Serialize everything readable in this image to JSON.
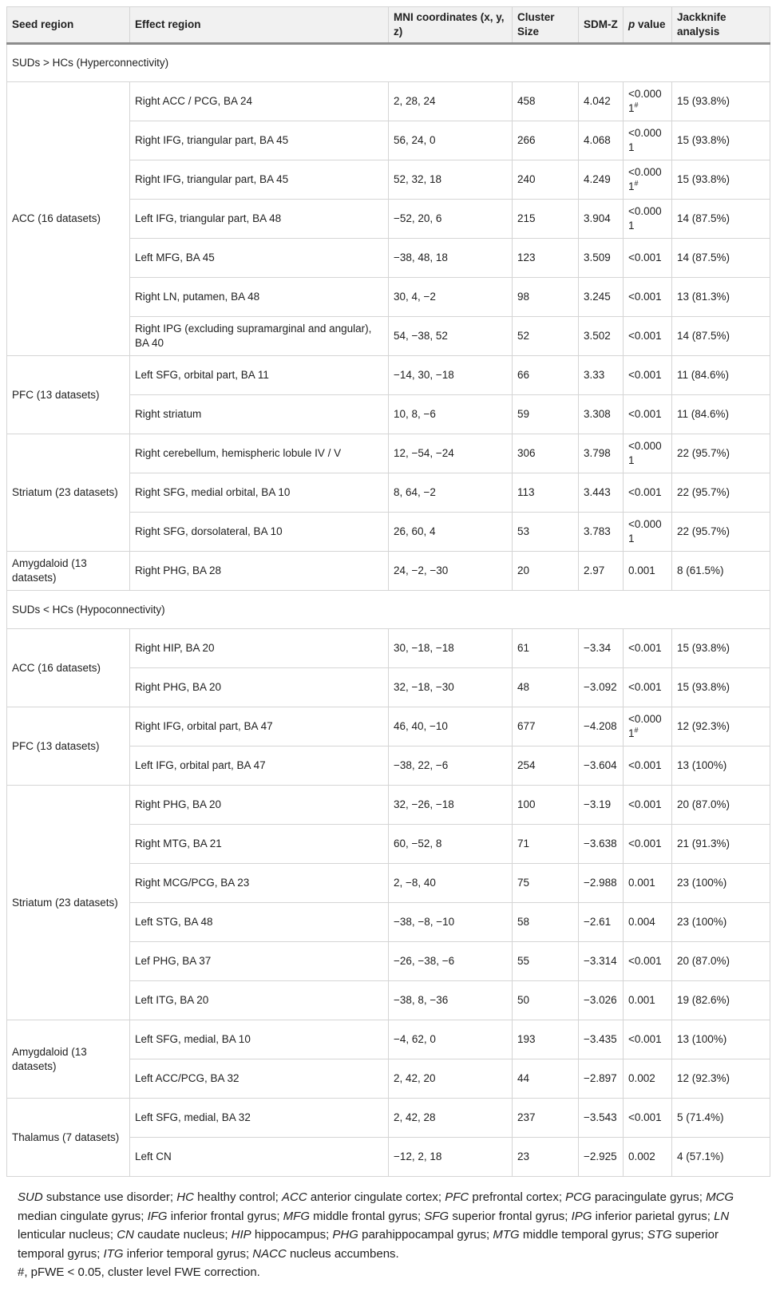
{
  "table": {
    "headers": [
      {
        "label": "Seed region"
      },
      {
        "label": "Effect region"
      },
      {
        "label": "MNI coordinates (x, y, z)"
      },
      {
        "label": "Cluster Size"
      },
      {
        "label": "SDM-Z"
      },
      {
        "label": "p value",
        "italic_first_word": true
      },
      {
        "label": "Jackknife analysis"
      }
    ],
    "sections": [
      {
        "title": "SUDs > HCs (Hyperconnectivity)",
        "groups": [
          {
            "seed": "ACC (16 datasets)",
            "rows": [
              {
                "effect": "Right ACC / PCG, BA 24",
                "mni": "2, 28, 24",
                "cluster": "458",
                "sdm_z": "4.042",
                "p": "<0.0001#",
                "jackknife": "15 (93.8%)"
              },
              {
                "effect": "Right IFG, triangular part, BA 45",
                "mni": "56, 24, 0",
                "cluster": "266",
                "sdm_z": "4.068",
                "p": "<0.0001",
                "jackknife": "15 (93.8%)"
              },
              {
                "effect": "Right IFG, triangular part, BA 45",
                "mni": "52, 32, 18",
                "cluster": "240",
                "sdm_z": "4.249",
                "p": "<0.0001#",
                "jackknife": "15 (93.8%)"
              },
              {
                "effect": "Left IFG, triangular part, BA 48",
                "mni": "−52, 20, 6",
                "cluster": "215",
                "sdm_z": "3.904",
                "p": "<0.0001",
                "jackknife": "14 (87.5%)"
              },
              {
                "effect": "Left MFG, BA 45",
                "mni": "−38, 48, 18",
                "cluster": "123",
                "sdm_z": "3.509",
                "p": "<0.001",
                "jackknife": "14 (87.5%)"
              },
              {
                "effect": "Right LN, putamen, BA 48",
                "mni": "30, 4, −2",
                "cluster": "98",
                "sdm_z": "3.245",
                "p": "<0.001",
                "jackknife": "13 (81.3%)"
              },
              {
                "effect": "Right IPG (excluding supramarginal and angular), BA 40",
                "mni": "54, −38, 52",
                "cluster": "52",
                "sdm_z": "3.502",
                "p": "<0.001",
                "jackknife": "14 (87.5%)"
              }
            ]
          },
          {
            "seed": "PFC (13 datasets)",
            "rows": [
              {
                "effect": "Left SFG, orbital part, BA 11",
                "mni": "−14, 30, −18",
                "cluster": "66",
                "sdm_z": "3.33",
                "p": "<0.001",
                "jackknife": "11 (84.6%)"
              },
              {
                "effect": "Right striatum",
                "mni": "10, 8, −6",
                "cluster": "59",
                "sdm_z": "3.308",
                "p": "<0.001",
                "jackknife": "11 (84.6%)"
              }
            ]
          },
          {
            "seed": "Striatum (23 datasets)",
            "rows": [
              {
                "effect": "Right cerebellum, hemispheric lobule IV / V",
                "mni": "12, −54, −24",
                "cluster": "306",
                "sdm_z": "3.798",
                "p": "<0.0001",
                "jackknife": "22 (95.7%)"
              },
              {
                "effect": "Right SFG, medial orbital, BA 10",
                "mni": "8, 64, −2",
                "cluster": "113",
                "sdm_z": "3.443",
                "p": "<0.001",
                "jackknife": "22 (95.7%)"
              },
              {
                "effect": "Right SFG, dorsolateral, BA 10",
                "mni": "26, 60, 4",
                "cluster": "53",
                "sdm_z": "3.783",
                "p": "<0.0001",
                "jackknife": "22 (95.7%)"
              }
            ]
          },
          {
            "seed": "Amygdaloid (13 datasets)",
            "rows": [
              {
                "effect": "Right PHG, BA 28",
                "mni": "24, −2, −30",
                "cluster": "20",
                "sdm_z": "2.97",
                "p": "0.001",
                "jackknife": "8 (61.5%)"
              }
            ]
          }
        ]
      },
      {
        "title": "SUDs < HCs (Hypoconnectivity)",
        "groups": [
          {
            "seed": "ACC (16 datasets)",
            "rows": [
              {
                "effect": "Right HIP, BA 20",
                "mni": "30, −18, −18",
                "cluster": "61",
                "sdm_z": "−3.34",
                "p": "<0.001",
                "jackknife": "15 (93.8%)"
              },
              {
                "effect": "Right PHG, BA 20",
                "mni": "32, −18, −30",
                "cluster": "48",
                "sdm_z": "−3.092",
                "p": "<0.001",
                "jackknife": "15 (93.8%)"
              }
            ]
          },
          {
            "seed": "PFC (13 datasets)",
            "rows": [
              {
                "effect": "Right IFG, orbital part, BA 47",
                "mni": "46, 40, −10",
                "cluster": "677",
                "sdm_z": "−4.208",
                "p": "<0.0001#",
                "jackknife": "12 (92.3%)"
              },
              {
                "effect": "Left IFG, orbital part, BA 47",
                "mni": "−38, 22, −6",
                "cluster": "254",
                "sdm_z": "−3.604",
                "p": "<0.001",
                "jackknife": "13 (100%)"
              }
            ]
          },
          {
            "seed": "Striatum (23 datasets)",
            "rows": [
              {
                "effect": "Right PHG, BA 20",
                "mni": "32, −26, −18",
                "cluster": "100",
                "sdm_z": "−3.19",
                "p": "<0.001",
                "jackknife": "20 (87.0%)"
              },
              {
                "effect": "Right MTG, BA 21",
                "mni": "60, −52, 8",
                "cluster": "71",
                "sdm_z": "−3.638",
                "p": "<0.001",
                "jackknife": "21 (91.3%)"
              },
              {
                "effect": "Right MCG/PCG, BA 23",
                "mni": "2, −8, 40",
                "cluster": "75",
                "sdm_z": "−2.988",
                "p": "0.001",
                "jackknife": "23 (100%)"
              },
              {
                "effect": "Left STG, BA 48",
                "mni": "−38, −8, −10",
                "cluster": "58",
                "sdm_z": "−2.61",
                "p": "0.004",
                "jackknife": "23 (100%)"
              },
              {
                "effect": "Lef PHG, BA 37",
                "mni": "−26, −38, −6",
                "cluster": "55",
                "sdm_z": "−3.314",
                "p": "<0.001",
                "jackknife": "20 (87.0%)"
              },
              {
                "effect": "Left ITG, BA 20",
                "mni": "−38, 8, −36",
                "cluster": "50",
                "sdm_z": "−3.026",
                "p": "0.001",
                "jackknife": "19 (82.6%)"
              }
            ]
          },
          {
            "seed": "Amygdaloid (13 datasets)",
            "rows": [
              {
                "effect": "Left SFG, medial, BA 10",
                "mni": "−4, 62, 0",
                "cluster": "193",
                "sdm_z": "−3.435",
                "p": "<0.001",
                "jackknife": "13 (100%)"
              },
              {
                "effect": "Left ACC/PCG, BA 32",
                "mni": "2, 42, 20",
                "cluster": "44",
                "sdm_z": "−2.897",
                "p": "0.002",
                "jackknife": "12 (92.3%)"
              }
            ]
          },
          {
            "seed": "Thalamus (7 datasets)",
            "rows": [
              {
                "effect": "Left SFG, medial, BA 32",
                "mni": "2, 42, 28",
                "cluster": "237",
                "sdm_z": "−3.543",
                "p": "<0.001",
                "jackknife": "5 (71.4%)"
              },
              {
                "effect": "Left CN",
                "mni": "−12, 2, 18",
                "cluster": "23",
                "sdm_z": "−2.925",
                "p": "0.002",
                "jackknife": "4 (57.1%)"
              }
            ]
          }
        ]
      }
    ]
  },
  "footnote": {
    "abbreviations": [
      {
        "abbr": "SUD",
        "meaning": "substance use disorder"
      },
      {
        "abbr": "HC",
        "meaning": "healthy control"
      },
      {
        "abbr": "ACC",
        "meaning": "anterior cingulate cortex"
      },
      {
        "abbr": "PFC",
        "meaning": "prefrontal cortex"
      },
      {
        "abbr": "PCG",
        "meaning": "paracingulate gyrus"
      },
      {
        "abbr": "MCG",
        "meaning": "median cingulate gyrus"
      },
      {
        "abbr": "IFG",
        "meaning": "inferior frontal gyrus"
      },
      {
        "abbr": "MFG",
        "meaning": "middle frontal gyrus"
      },
      {
        "abbr": "SFG",
        "meaning": "superior frontal gyrus"
      },
      {
        "abbr": "IPG",
        "meaning": "inferior parietal gyrus"
      },
      {
        "abbr": "LN",
        "meaning": "lenticular nucleus"
      },
      {
        "abbr": "CN",
        "meaning": "caudate nucleus"
      },
      {
        "abbr": "HIP",
        "meaning": "hippocampus"
      },
      {
        "abbr": "PHG",
        "meaning": "parahippocampal gyrus"
      },
      {
        "abbr": "MTG",
        "meaning": "middle temporal gyrus"
      },
      {
        "abbr": "STG",
        "meaning": "superior temporal gyrus"
      },
      {
        "abbr": "ITG",
        "meaning": "inferior temporal gyrus"
      },
      {
        "abbr": "NACC",
        "meaning": "nucleus accumbens"
      }
    ],
    "significance_note": "#, pFWE < 0.05, cluster level FWE correction."
  },
  "colors": {
    "header_background": "#f1f1f1",
    "header_rule": "#8c8c8c",
    "grid_line": "#d5d5d5",
    "outer_border": "#b9b9b9",
    "text": "#212121"
  }
}
